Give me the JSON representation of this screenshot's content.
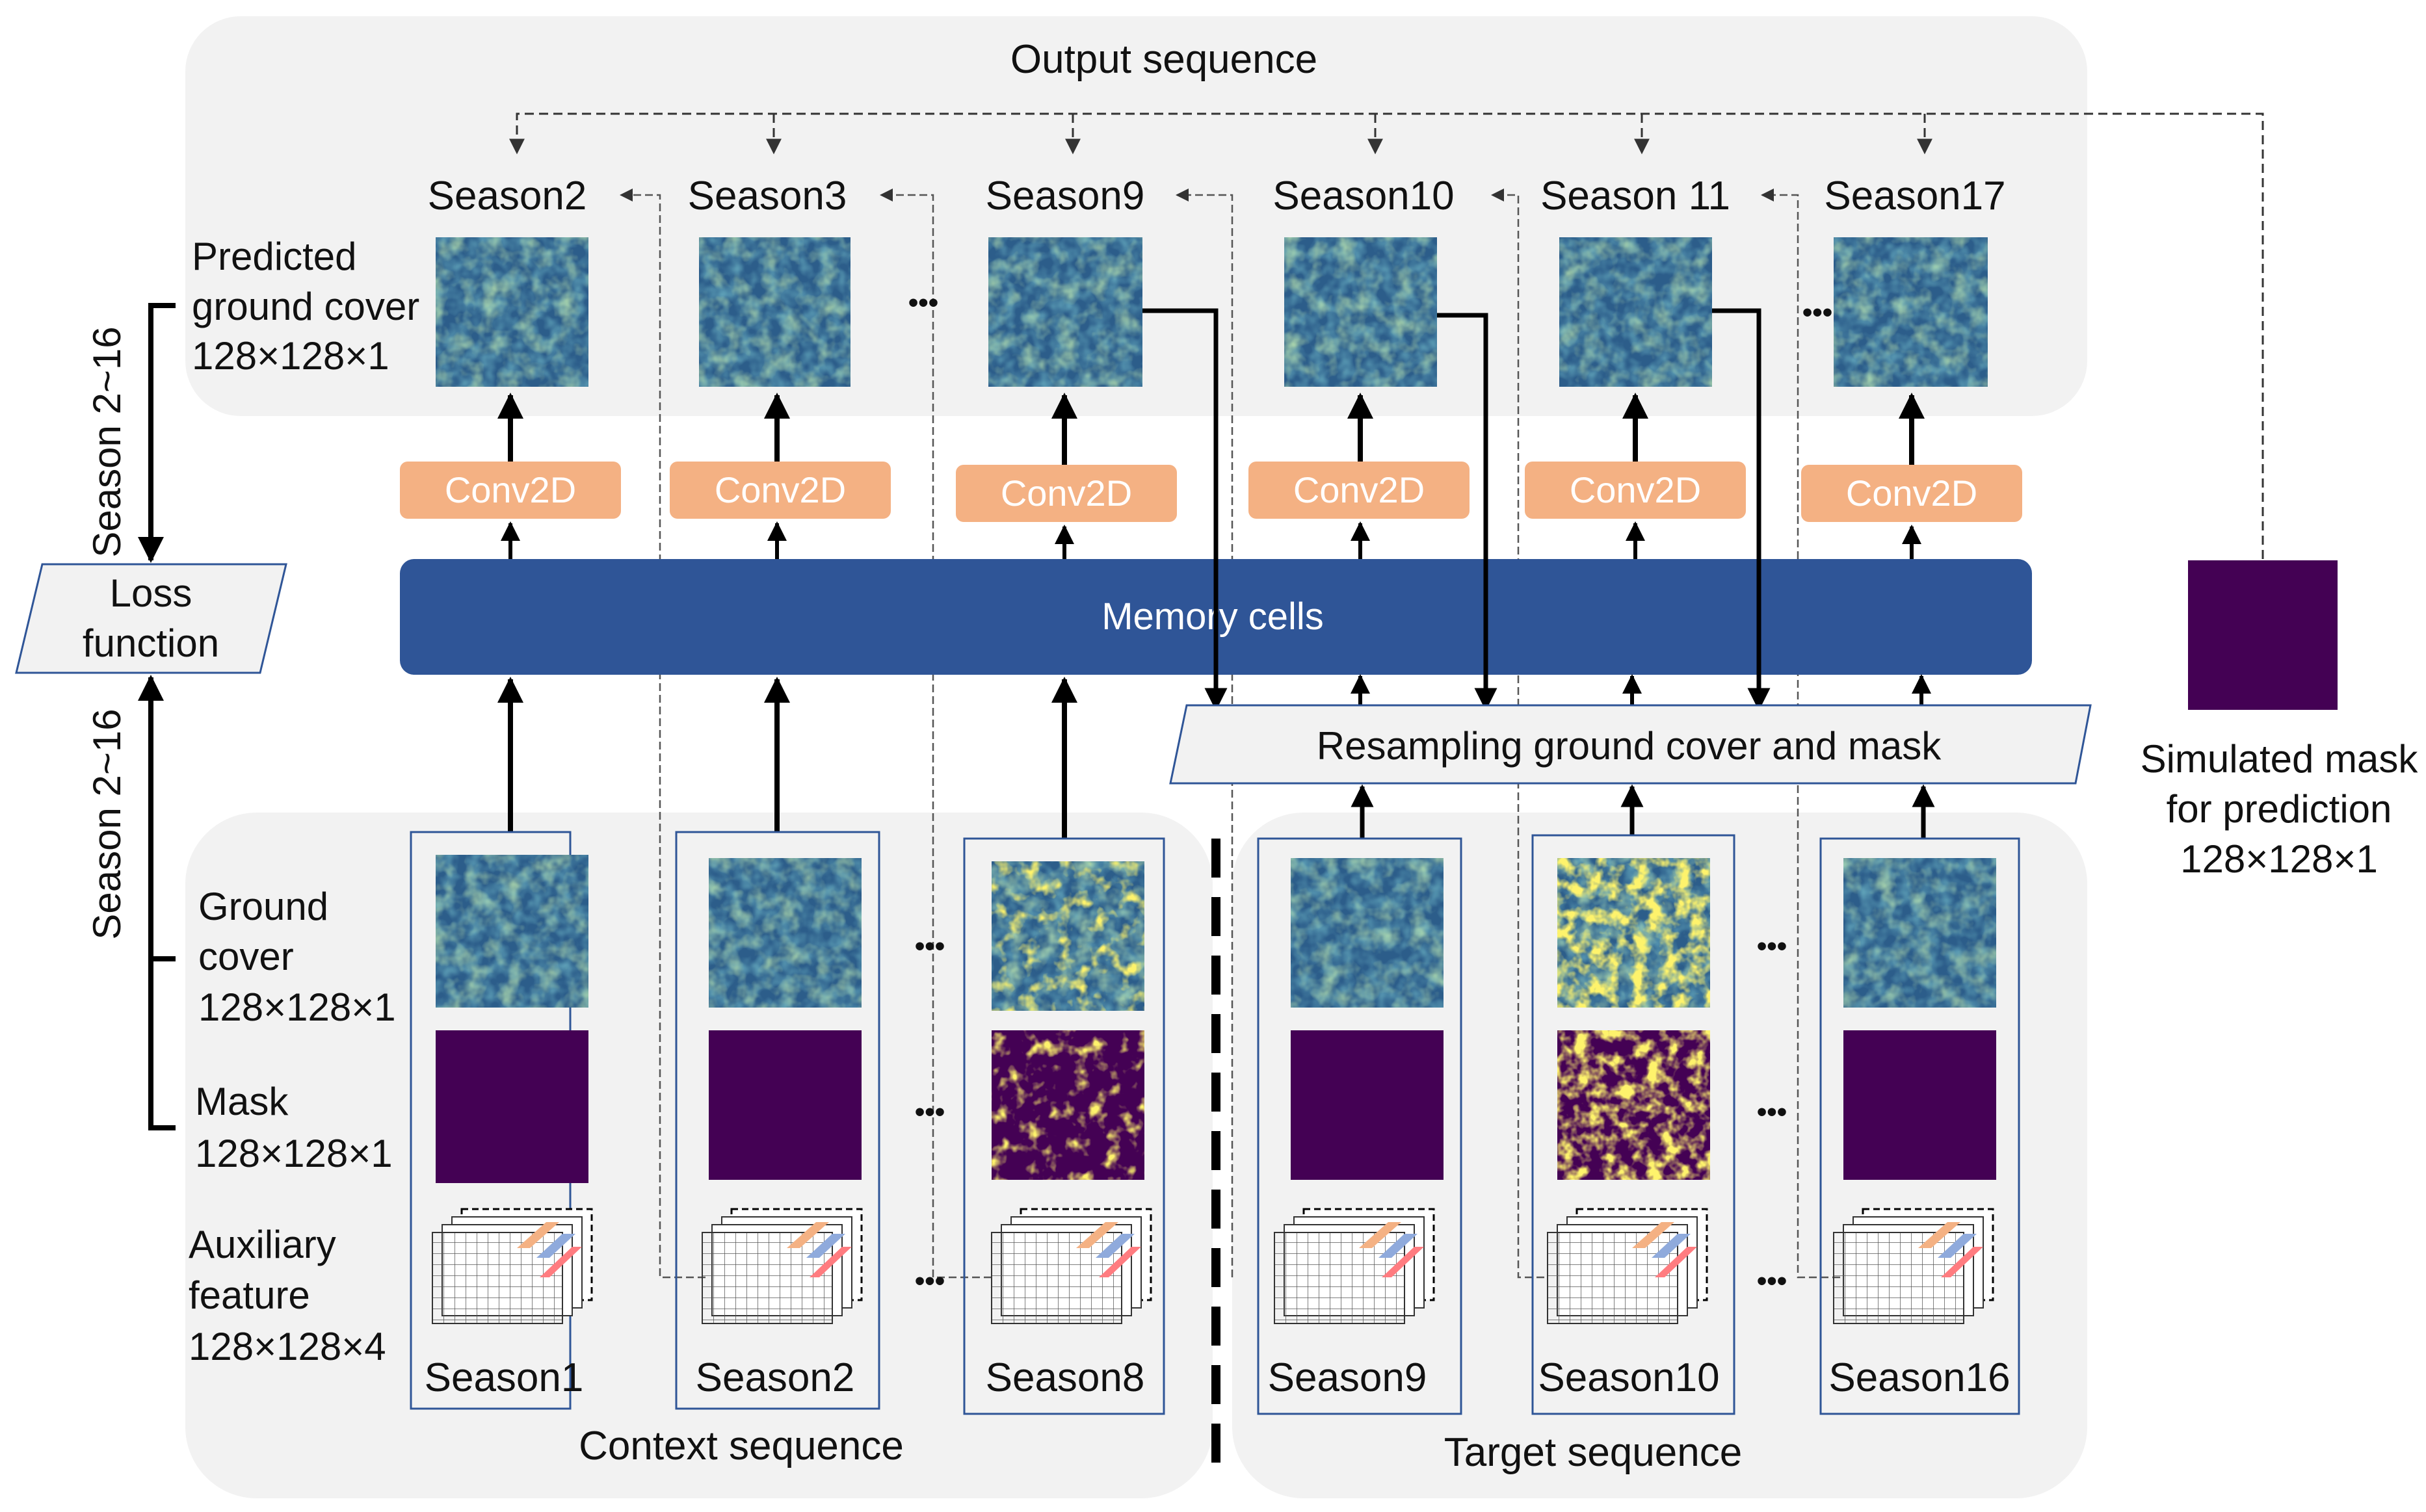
{
  "output_title": "Output sequence",
  "context_title": "Context sequence",
  "target_title": "Target sequence",
  "top_seasons": [
    "Season2",
    "Season3",
    "Season9",
    "Season10",
    "Season 11",
    "Season17"
  ],
  "bottom_seasons": [
    "Season1",
    "Season2",
    "Season8",
    "Season9",
    "Season10",
    "Season16"
  ],
  "pred_label": [
    "Predicted",
    "ground cover",
    "128×128×1"
  ],
  "ground_label": [
    "Ground",
    "cover",
    "128×128×1"
  ],
  "mask_label": [
    "Mask",
    "128×128×1"
  ],
  "aux_label": [
    "Auxiliary",
    "feature",
    "128×128×4"
  ],
  "conv_label": "Conv2D",
  "memory_label": "Memory cells",
  "resample_label": "Resampling ground cover and mask",
  "loss_label": [
    "Loss",
    "function"
  ],
  "range_top": "Season 2~16",
  "range_bottom": "Season 2~16",
  "sim_mask_label": [
    "Simulated mask",
    "for prediction",
    "128×128×1"
  ],
  "ellipsis": "•••",
  "colors": {
    "panel": "#f2f2f2",
    "memory": "#2f5597",
    "conv": "#f4b183",
    "mask": "#440154",
    "gc_dark": "#2c5d8a",
    "gc_mid": "#21908c",
    "gc_light": "#5ec962",
    "cloud": "#fde725",
    "frame": "#2f5597"
  }
}
